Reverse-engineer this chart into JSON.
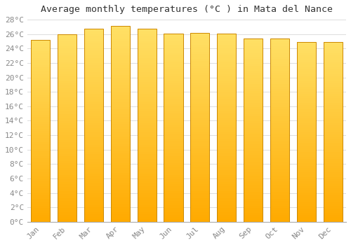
{
  "title": "Average monthly temperatures (°C ) in Mata del Nance",
  "months": [
    "Jan",
    "Feb",
    "Mar",
    "Apr",
    "May",
    "Jun",
    "Jul",
    "Aug",
    "Sep",
    "Oct",
    "Nov",
    "Dec"
  ],
  "values": [
    25.2,
    26.0,
    26.7,
    27.1,
    26.7,
    26.1,
    26.2,
    26.1,
    25.4,
    25.4,
    24.9,
    24.9
  ],
  "bar_color_bottom": "#FFAA00",
  "bar_color_top": "#FFE066",
  "bar_edge_color": "#CC8800",
  "background_color": "#FFFFFF",
  "grid_color": "#DDDDDD",
  "title_fontsize": 9.5,
  "tick_fontsize": 8,
  "ylim": [
    0,
    28
  ],
  "ytick_step": 2,
  "bar_width": 0.72
}
